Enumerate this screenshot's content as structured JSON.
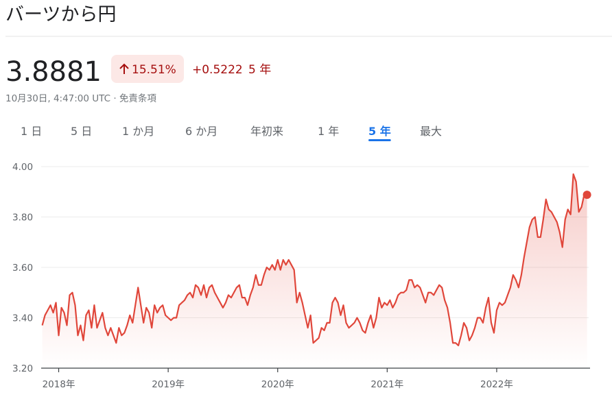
{
  "header": {
    "title": "バーツから円"
  },
  "quote": {
    "price": "3.8881",
    "change_percent": "15.51%",
    "change": "+0.5222",
    "period": "5 年",
    "timestamp": "10月30日, 4:47:00 UTC · ",
    "disclaimer": "免責条項"
  },
  "tabs": [
    {
      "label": "1 日",
      "selected": false
    },
    {
      "label": "5 日",
      "selected": false
    },
    {
      "label": "1 か月",
      "selected": false
    },
    {
      "label": "6 か月",
      "selected": false
    },
    {
      "label": "年初来",
      "selected": false
    },
    {
      "label": "1 年",
      "selected": false
    },
    {
      "label": "5 年",
      "selected": true
    },
    {
      "label": "最大",
      "selected": false
    }
  ],
  "chart_data": {
    "type": "line",
    "color": "#e0463a",
    "grid": true,
    "x": [
      2017.85,
      2017.875,
      2017.9,
      2017.925,
      2017.95,
      2017.975,
      2018,
      2018.025,
      2018.05,
      2018.075,
      2018.1,
      2018.125,
      2018.15,
      2018.175,
      2018.2,
      2018.225,
      2018.25,
      2018.275,
      2018.3,
      2018.325,
      2018.35,
      2018.375,
      2018.4,
      2018.425,
      2018.45,
      2018.475,
      2018.5,
      2018.525,
      2018.55,
      2018.575,
      2018.6,
      2018.625,
      2018.65,
      2018.675,
      2018.7,
      2018.725,
      2018.75,
      2018.775,
      2018.8,
      2018.825,
      2018.85,
      2018.875,
      2018.9,
      2018.925,
      2018.95,
      2018.975,
      2019,
      2019.025,
      2019.05,
      2019.075,
      2019.1,
      2019.125,
      2019.15,
      2019.175,
      2019.2,
      2019.225,
      2019.25,
      2019.275,
      2019.3,
      2019.325,
      2019.35,
      2019.375,
      2019.4,
      2019.425,
      2019.45,
      2019.475,
      2019.5,
      2019.525,
      2019.55,
      2019.575,
      2019.6,
      2019.625,
      2019.65,
      2019.675,
      2019.7,
      2019.725,
      2019.75,
      2019.775,
      2019.8,
      2019.825,
      2019.85,
      2019.875,
      2019.9,
      2019.925,
      2019.95,
      2019.975,
      2020,
      2020.025,
      2020.05,
      2020.075,
      2020.1,
      2020.125,
      2020.15,
      2020.175,
      2020.2,
      2020.225,
      2020.25,
      2020.275,
      2020.3,
      2020.325,
      2020.35,
      2020.375,
      2020.4,
      2020.425,
      2020.45,
      2020.475,
      2020.5,
      2020.525,
      2020.55,
      2020.575,
      2020.6,
      2020.625,
      2020.65,
      2020.675,
      2020.7,
      2020.725,
      2020.75,
      2020.775,
      2020.8,
      2020.825,
      2020.85,
      2020.875,
      2020.9,
      2020.925,
      2020.95,
      2020.975,
      2021,
      2021.025,
      2021.05,
      2021.075,
      2021.1,
      2021.125,
      2021.15,
      2021.175,
      2021.2,
      2021.225,
      2021.25,
      2021.275,
      2021.3,
      2021.325,
      2021.35,
      2021.375,
      2021.4,
      2021.425,
      2021.45,
      2021.475,
      2021.5,
      2021.525,
      2021.55,
      2021.575,
      2021.6,
      2021.625,
      2021.65,
      2021.675,
      2021.7,
      2021.725,
      2021.75,
      2021.775,
      2021.8,
      2021.825,
      2021.85,
      2021.875,
      2021.9,
      2021.925,
      2021.95,
      2021.975,
      2022,
      2022.025,
      2022.05,
      2022.075,
      2022.1,
      2022.125,
      2022.15,
      2022.175,
      2022.2,
      2022.225,
      2022.25,
      2022.275,
      2022.3,
      2022.325,
      2022.35,
      2022.375,
      2022.4,
      2022.425,
      2022.45,
      2022.475,
      2022.5,
      2022.525,
      2022.55,
      2022.575,
      2022.6,
      2022.625,
      2022.65,
      2022.675,
      2022.7,
      2022.725,
      2022.75,
      2022.775,
      2022.8,
      2022.825
    ],
    "values": [
      3.37,
      3.41,
      3.43,
      3.45,
      3.42,
      3.46,
      3.33,
      3.44,
      3.42,
      3.37,
      3.49,
      3.5,
      3.45,
      3.33,
      3.37,
      3.31,
      3.41,
      3.43,
      3.36,
      3.45,
      3.36,
      3.39,
      3.42,
      3.36,
      3.33,
      3.36,
      3.33,
      3.3,
      3.36,
      3.33,
      3.34,
      3.37,
      3.41,
      3.38,
      3.45,
      3.52,
      3.45,
      3.38,
      3.44,
      3.42,
      3.36,
      3.45,
      3.42,
      3.44,
      3.45,
      3.41,
      3.4,
      3.39,
      3.4,
      3.4,
      3.45,
      3.46,
      3.47,
      3.49,
      3.5,
      3.48,
      3.53,
      3.52,
      3.49,
      3.53,
      3.48,
      3.52,
      3.53,
      3.5,
      3.48,
      3.46,
      3.44,
      3.46,
      3.49,
      3.48,
      3.5,
      3.52,
      3.53,
      3.48,
      3.48,
      3.45,
      3.49,
      3.52,
      3.57,
      3.53,
      3.53,
      3.57,
      3.6,
      3.59,
      3.61,
      3.59,
      3.63,
      3.59,
      3.63,
      3.61,
      3.63,
      3.61,
      3.59,
      3.46,
      3.5,
      3.46,
      3.41,
      3.36,
      3.41,
      3.3,
      3.31,
      3.32,
      3.36,
      3.35,
      3.38,
      3.38,
      3.46,
      3.48,
      3.46,
      3.41,
      3.45,
      3.38,
      3.36,
      3.37,
      3.38,
      3.4,
      3.38,
      3.35,
      3.34,
      3.38,
      3.41,
      3.36,
      3.4,
      3.48,
      3.44,
      3.46,
      3.45,
      3.47,
      3.44,
      3.46,
      3.49,
      3.5,
      3.5,
      3.51,
      3.55,
      3.55,
      3.52,
      3.53,
      3.52,
      3.49,
      3.46,
      3.5,
      3.5,
      3.49,
      3.51,
      3.53,
      3.52,
      3.47,
      3.44,
      3.38,
      3.3,
      3.3,
      3.29,
      3.33,
      3.38,
      3.36,
      3.31,
      3.33,
      3.36,
      3.4,
      3.4,
      3.38,
      3.44,
      3.48,
      3.38,
      3.34,
      3.43,
      3.46,
      3.45,
      3.46,
      3.49,
      3.52,
      3.57,
      3.55,
      3.52,
      3.57,
      3.64,
      3.7,
      3.76,
      3.79,
      3.8,
      3.72,
      3.72,
      3.79,
      3.87,
      3.83,
      3.82,
      3.8,
      3.78,
      3.74,
      3.68,
      3.79,
      3.83,
      3.81,
      3.97,
      3.94,
      3.82,
      3.84,
      3.89,
      3.8881
    ],
    "xlim": [
      2017.84,
      2022.84
    ],
    "xticks": [
      {
        "value": 2018,
        "label": "2018年"
      },
      {
        "value": 2019,
        "label": "2019年"
      },
      {
        "value": 2020,
        "label": "2020年"
      },
      {
        "value": 2021,
        "label": "2021年"
      },
      {
        "value": 2022,
        "label": "2022年"
      }
    ],
    "ylim": [
      3.2,
      4.0
    ],
    "yticks": [
      {
        "value": 3.2,
        "label": "3.20"
      },
      {
        "value": 3.4,
        "label": "3.40"
      },
      {
        "value": 3.6,
        "label": "3.60"
      },
      {
        "value": 3.8,
        "label": "3.80"
      },
      {
        "value": 4,
        "label": "4.00"
      }
    ]
  }
}
